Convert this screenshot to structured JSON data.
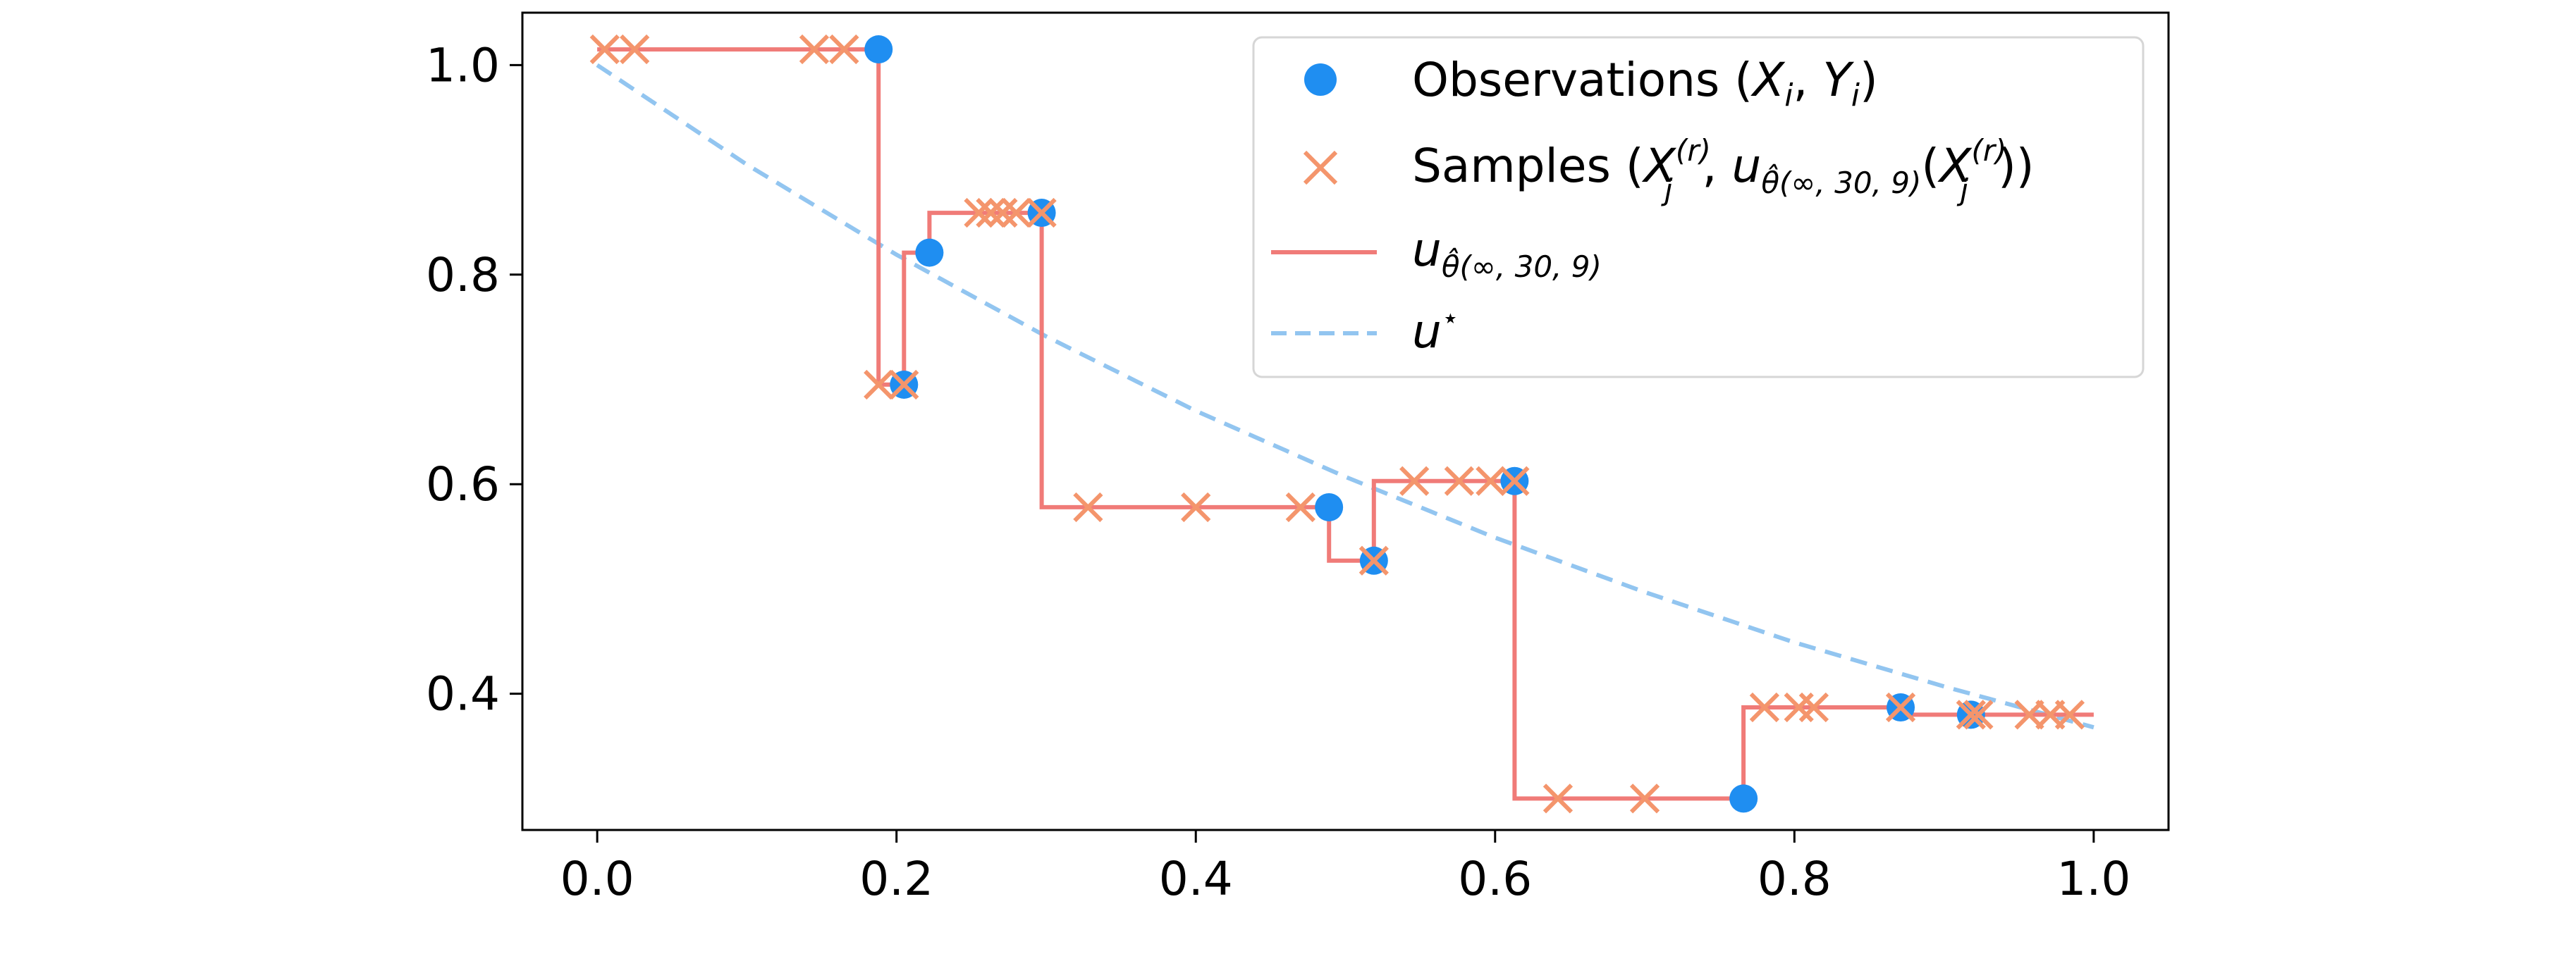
{
  "chart_data": {
    "type": "line",
    "title": "",
    "xlabel": "",
    "ylabel": "",
    "xlim": [
      -0.05,
      1.05
    ],
    "ylim": [
      0.27,
      1.05
    ],
    "x_ticks": [
      0.0,
      0.2,
      0.4,
      0.6,
      0.8,
      1.0
    ],
    "x_tick_labels": [
      "0.0",
      "0.2",
      "0.4",
      "0.6",
      "0.8",
      "1.0"
    ],
    "y_ticks": [
      0.4,
      0.6,
      0.8,
      1.0
    ],
    "y_tick_labels": [
      "0.4",
      "0.6",
      "0.8",
      "1.0"
    ],
    "grid": false,
    "legend_position": "top-right",
    "colors": {
      "observations": "#1f8ef1",
      "samples": "#f4956c",
      "step": "#f07b78",
      "true": "#92c5f0"
    },
    "series": [
      {
        "key": "observations",
        "kind": "scatter-circle",
        "name": "Observations (X_i, Y_i)",
        "x": [
          0.188,
          0.205,
          0.222,
          0.297,
          0.489,
          0.519,
          0.613,
          0.766,
          0.871,
          0.918
        ],
        "y": [
          1.015,
          0.695,
          0.821,
          0.859,
          0.578,
          0.527,
          0.603,
          0.3,
          0.387,
          0.38
        ]
      },
      {
        "key": "samples",
        "kind": "scatter-x",
        "name": "Samples (X_j^(r), u_θ̂(∞,30,9)(X_j^(r)))",
        "x": [
          0.005,
          0.025,
          0.145,
          0.165,
          0.188,
          0.205,
          0.255,
          0.263,
          0.271,
          0.28,
          0.297,
          0.328,
          0.4,
          0.47,
          0.519,
          0.546,
          0.576,
          0.597,
          0.613,
          0.642,
          0.7,
          0.78,
          0.803,
          0.813,
          0.871,
          0.918,
          0.923,
          0.957,
          0.971,
          0.984
        ],
        "y": [
          1.015,
          1.015,
          1.015,
          1.015,
          0.695,
          0.695,
          0.859,
          0.859,
          0.859,
          0.859,
          0.859,
          0.578,
          0.578,
          0.578,
          0.527,
          0.603,
          0.603,
          0.603,
          0.603,
          0.3,
          0.3,
          0.387,
          0.387,
          0.387,
          0.387,
          0.38,
          0.38,
          0.38,
          0.38,
          0.38
        ]
      },
      {
        "key": "step",
        "kind": "line",
        "name": "u_θ̂(∞,30,9)",
        "x": [
          0.0,
          0.188,
          0.188,
          0.205,
          0.205,
          0.222,
          0.222,
          0.297,
          0.297,
          0.489,
          0.489,
          0.519,
          0.519,
          0.613,
          0.613,
          0.766,
          0.766,
          0.871,
          0.871,
          1.0
        ],
        "y": [
          1.015,
          1.015,
          0.695,
          0.695,
          0.821,
          0.821,
          0.859,
          0.859,
          0.578,
          0.578,
          0.527,
          0.527,
          0.603,
          0.603,
          0.3,
          0.3,
          0.387,
          0.387,
          0.38,
          0.38
        ]
      },
      {
        "key": "true",
        "kind": "dashed-line",
        "name": "u*",
        "x": [
          0.0,
          0.1,
          0.2,
          0.3,
          0.4,
          0.5,
          0.6,
          0.7,
          0.8,
          0.9,
          1.0
        ],
        "y": [
          1.0,
          0.905,
          0.819,
          0.741,
          0.67,
          0.607,
          0.549,
          0.497,
          0.449,
          0.407,
          0.368
        ]
      }
    ],
    "legend": {
      "observations": {
        "main": "Observations (",
        "v1": "X",
        "s1": "i",
        "comma": ", ",
        "v2": "Y",
        "s2": "i",
        "close": ")"
      },
      "samples": {
        "main": "Samples (",
        "v1": "X",
        "sup1": "(r)",
        "sub1": "j",
        "comma": ", ",
        "u": "u",
        "usub": "θ̂(∞, 30, 9)",
        "open": "(",
        "v2": "X",
        "sup2": "(r)",
        "sub2": "j",
        "close": "))"
      },
      "step": {
        "u": "u",
        "usub": "θ̂(∞, 30, 9)"
      },
      "true": {
        "u": "u",
        "sup": "⋆"
      }
    }
  }
}
